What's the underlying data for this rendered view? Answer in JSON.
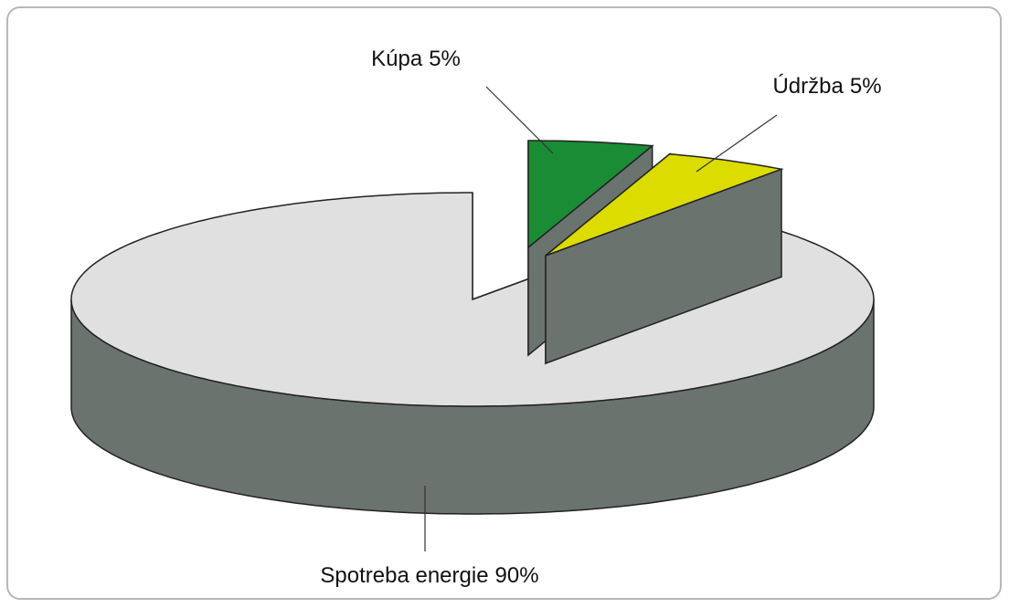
{
  "chart_data": {
    "type": "pie3d",
    "categories": [
      "Kúpa",
      "Údržba",
      "Spotreba energie"
    ],
    "values": [
      5,
      5,
      90
    ],
    "value_labels": [
      "5%",
      "5%",
      "90%"
    ],
    "colors": [
      "#1a8c35",
      "#dcdc00",
      "#e0e0e0"
    ],
    "side_color": "#6b736f"
  }
}
